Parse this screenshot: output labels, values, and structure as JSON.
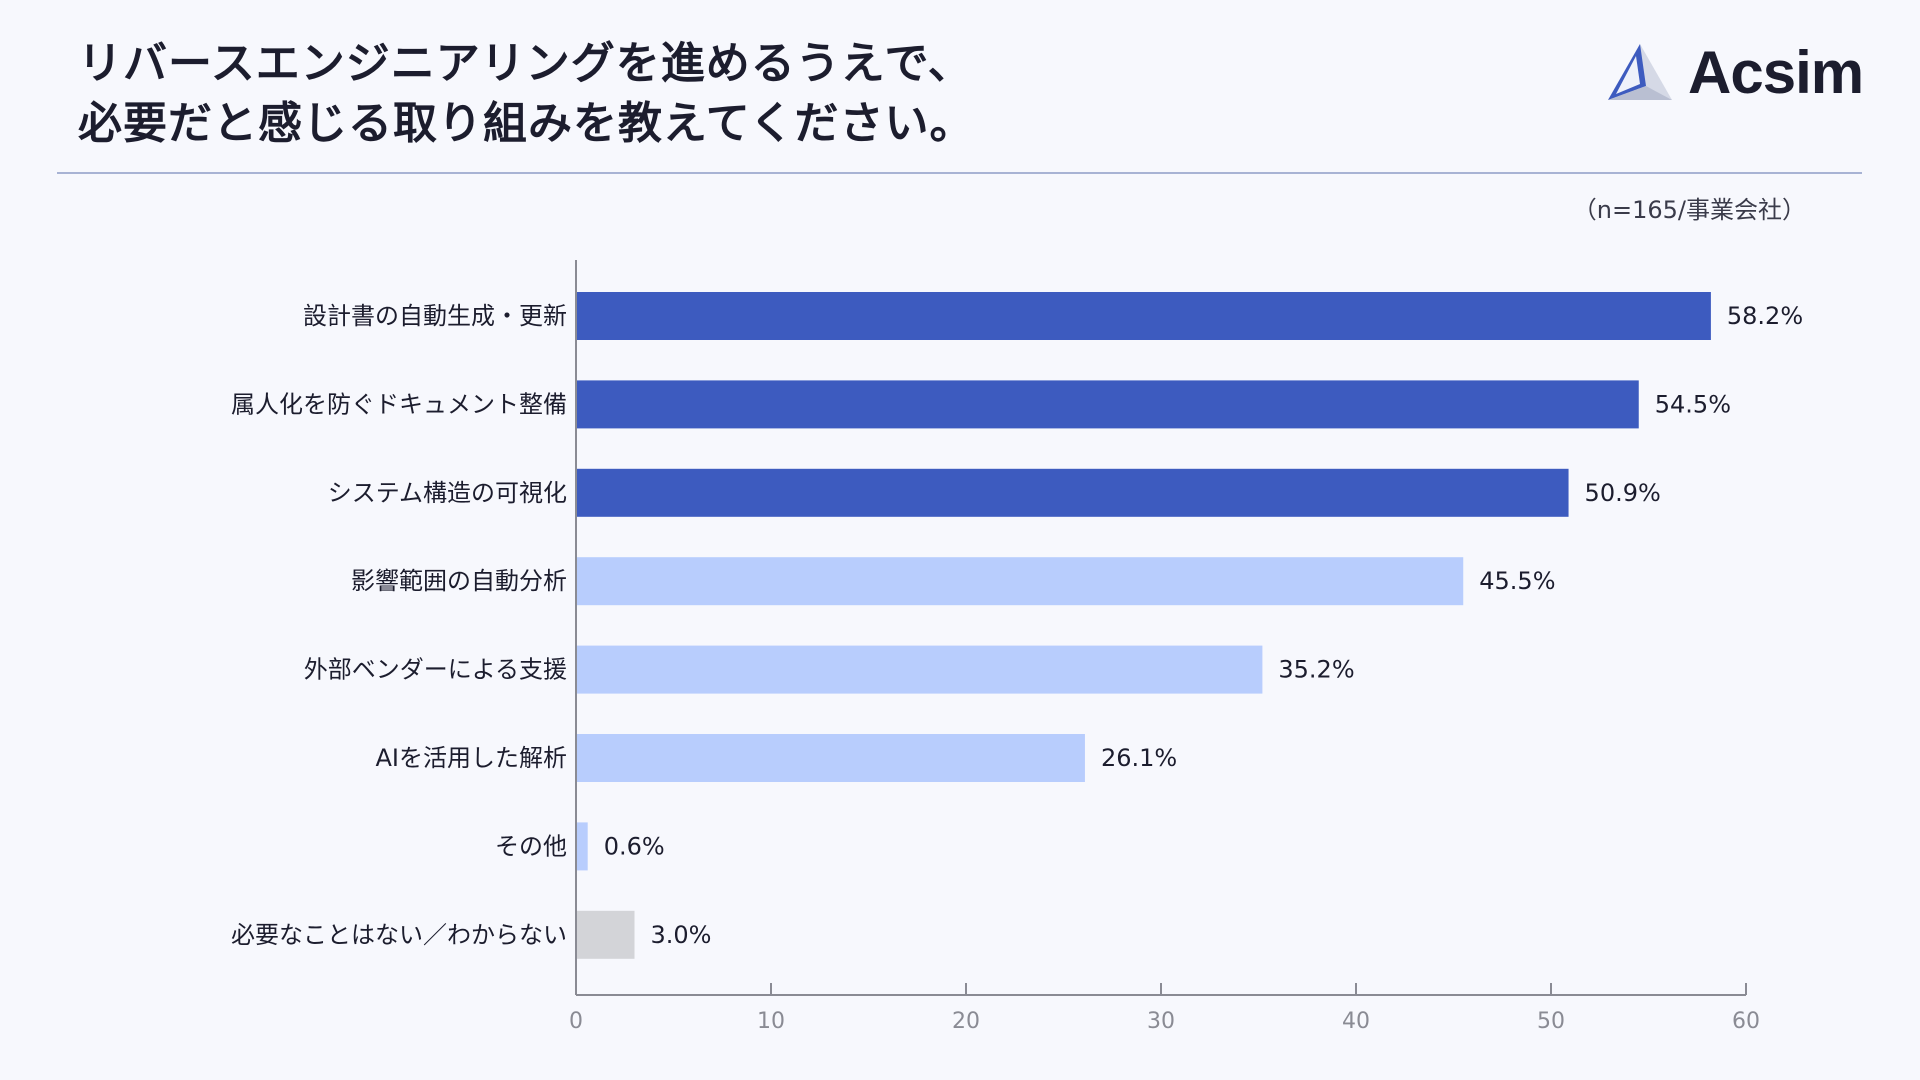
{
  "title_lines": [
    "リバースエンジニアリングを進めるうえで、",
    "必要だと感じる取り組みを教えてください。"
  ],
  "logo": {
    "text": "Acsim",
    "icon": "triangle-logo-icon"
  },
  "sample_note": "（n=165/事業会社）",
  "colors": {
    "top": "#3d5bbf",
    "mid": "#b8cdfd",
    "none": "#d3d4d8",
    "axis": "#8a8b94"
  },
  "chart_data": {
    "type": "bar",
    "orientation": "horizontal",
    "categories": [
      "設計書の自動生成・更新",
      "属人化を防ぐドキュメント整備",
      "システム構造の可視化",
      "影響範囲の自動分析",
      "外部ベンダーによる支援",
      "AIを活用した解析",
      "その他",
      "必要なことはない／わからない"
    ],
    "values": [
      58.2,
      54.5,
      50.9,
      45.5,
      35.2,
      26.1,
      0.6,
      3.0
    ],
    "value_labels": [
      "58.2%",
      "54.5%",
      "50.9%",
      "45.5%",
      "35.2%",
      "26.1%",
      "0.6%",
      "3.0%"
    ],
    "bar_colors": [
      "#3d5bbf",
      "#3d5bbf",
      "#3d5bbf",
      "#b8cdfd",
      "#b8cdfd",
      "#b8cdfd",
      "#b8cdfd",
      "#d3d4d8"
    ],
    "xlim": [
      0,
      60
    ],
    "xticks": [
      "0",
      "10",
      "20",
      "30",
      "40",
      "50",
      "60"
    ],
    "grid": false,
    "legend": "none"
  }
}
